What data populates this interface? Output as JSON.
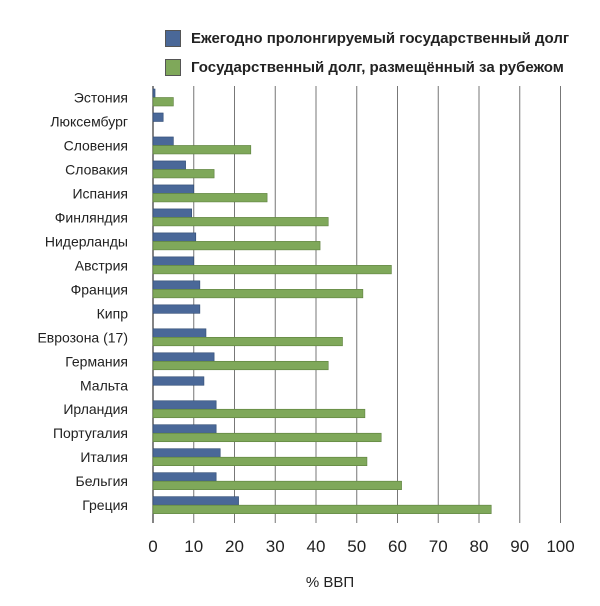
{
  "chart_data": {
    "type": "bar",
    "orientation": "horizontal",
    "title": "",
    "xlabel": "% ВВП",
    "ylabel": "",
    "xlim": [
      0,
      100
    ],
    "xticks": [
      0,
      10,
      20,
      30,
      40,
      50,
      60,
      70,
      80,
      90,
      100
    ],
    "grid": true,
    "legend_position": "top",
    "categories": [
      "Эстония",
      "Люксембург",
      "Словения",
      "Словакия",
      "Испания",
      "Финляндия",
      "Нидерланды",
      "Австрия",
      "Франция",
      "Кипр",
      "Еврозона (17)",
      "Германия",
      "Мальта",
      "Ирландия",
      "Португалия",
      "Италия",
      "Бельгия",
      "Греция"
    ],
    "series": [
      {
        "name": "Ежегодно пролонгируемый государственный долг",
        "color": "#4a6898",
        "values": [
          0.5,
          2.5,
          5,
          8,
          10,
          9.5,
          10.5,
          10,
          11.5,
          11.5,
          13,
          15,
          12.5,
          15.5,
          15.5,
          16.5,
          15.5,
          21
        ]
      },
      {
        "name": "Государственный долг, размещённый за рубежом",
        "color": "#7fa85a",
        "values": [
          5,
          null,
          24,
          15,
          28,
          43,
          41,
          58.5,
          51.5,
          null,
          46.5,
          43,
          null,
          52,
          56,
          52.5,
          61,
          83
        ]
      }
    ]
  }
}
